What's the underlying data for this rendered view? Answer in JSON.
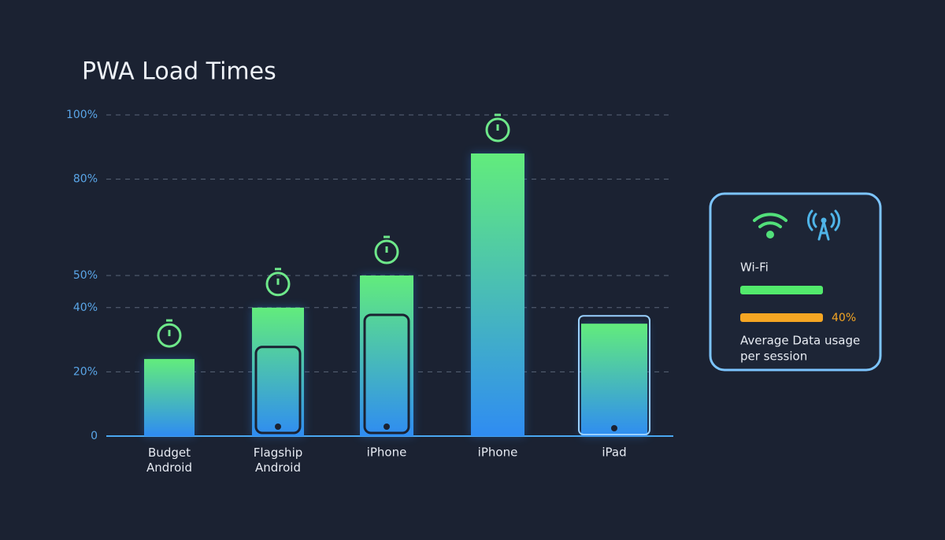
{
  "chart_data": {
    "type": "bar",
    "title": "PWA Load Times",
    "categories": [
      "Budget Android",
      "Flagship Android",
      "iPhone",
      "iPhone",
      "iPad"
    ],
    "values": [
      24,
      40,
      50,
      88,
      35
    ],
    "ylim": [
      0,
      100
    ],
    "yticks": [
      {
        "value": 100,
        "label": "100%"
      },
      {
        "value": 80,
        "label": "80%"
      },
      {
        "value": 50,
        "label": "50%"
      },
      {
        "value": 40,
        "label": "40%"
      },
      {
        "value": 20,
        "label": "20%"
      },
      0
    ],
    "grid": true,
    "colors": {
      "top": "#62ec7c",
      "bottom": "#2f8cf2"
    }
  },
  "panel": {
    "label": "Wi-Fi",
    "value_label": "40%",
    "note": [
      "Average Data usage",
      "per session"
    ]
  }
}
